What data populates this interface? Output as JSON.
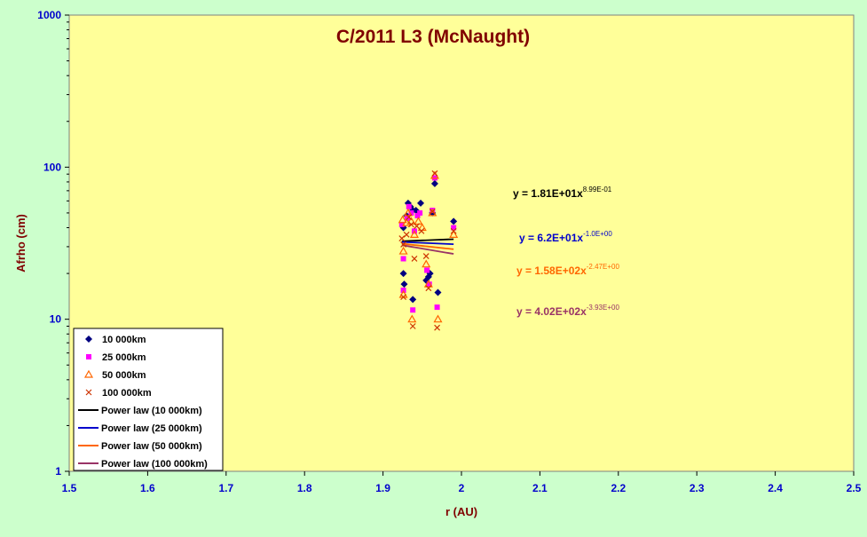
{
  "chart_data": {
    "type": "scatter",
    "title": "C/2011 L3 (McNaught)",
    "xlabel": "r (AU)",
    "ylabel": "Afrho (cm)",
    "xlim": [
      1.5,
      2.5
    ],
    "ylim": [
      1,
      1000
    ],
    "y_scale": "log",
    "x_ticks": [
      "1.5",
      "1.6",
      "1.7",
      "1.8",
      "1.9",
      "2",
      "2.1",
      "2.2",
      "2.3",
      "2.4",
      "2.5"
    ],
    "y_ticks": [
      "1",
      "10",
      "100",
      "1000"
    ],
    "grid": false,
    "legend_position": "bottom-left",
    "colors": {
      "plot_bg": "#ffff99",
      "page_bg": "#ccffcc",
      "title": "#800000",
      "axis_label": "#800000",
      "tick_label": "#0000cc"
    },
    "series": [
      {
        "name": "10 000km",
        "marker": "diamond",
        "color": "#000080",
        "points": [
          [
            1.926,
            40
          ],
          [
            1.926,
            20
          ],
          [
            1.927,
            17
          ],
          [
            1.93,
            48
          ],
          [
            1.932,
            58
          ],
          [
            1.935,
            55
          ],
          [
            1.938,
            52
          ],
          [
            1.938,
            13.5
          ],
          [
            1.942,
            52
          ],
          [
            1.945,
            50
          ],
          [
            1.948,
            58
          ],
          [
            1.955,
            18
          ],
          [
            1.958,
            19
          ],
          [
            1.96,
            20
          ],
          [
            1.963,
            50
          ],
          [
            1.966,
            78
          ],
          [
            1.97,
            15
          ],
          [
            1.99,
            44
          ]
        ]
      },
      {
        "name": "25 000km",
        "marker": "square",
        "color": "#ff00ff",
        "points": [
          [
            1.924,
            42
          ],
          [
            1.926,
            25
          ],
          [
            1.926,
            15.5
          ],
          [
            1.931,
            46
          ],
          [
            1.933,
            55
          ],
          [
            1.936,
            50
          ],
          [
            1.938,
            11.5
          ],
          [
            1.94,
            38
          ],
          [
            1.944,
            48
          ],
          [
            1.947,
            50
          ],
          [
            1.956,
            21
          ],
          [
            1.959,
            17
          ],
          [
            1.963,
            52
          ],
          [
            1.966,
            85
          ],
          [
            1.969,
            12
          ],
          [
            1.99,
            40
          ]
        ]
      },
      {
        "name": "50 000km",
        "marker": "triangle",
        "color": "#ff6600",
        "points": [
          [
            1.925,
            45
          ],
          [
            1.926,
            28
          ],
          [
            1.926,
            14.5
          ],
          [
            1.93,
            43
          ],
          [
            1.932,
            50
          ],
          [
            1.936,
            44
          ],
          [
            1.937,
            10
          ],
          [
            1.94,
            36
          ],
          [
            1.945,
            44
          ],
          [
            1.95,
            40
          ],
          [
            1.955,
            23
          ],
          [
            1.958,
            17
          ],
          [
            1.963,
            50
          ],
          [
            1.966,
            88
          ],
          [
            1.97,
            10
          ],
          [
            1.99,
            36
          ]
        ]
      },
      {
        "name": "100 000km",
        "marker": "cross",
        "color": "#cc3300",
        "points": [
          [
            1.924,
            34
          ],
          [
            1.926,
            31
          ],
          [
            1.926,
            14
          ],
          [
            1.93,
            36
          ],
          [
            1.933,
            47
          ],
          [
            1.936,
            42
          ],
          [
            1.938,
            9
          ],
          [
            1.94,
            25
          ],
          [
            1.943,
            41
          ],
          [
            1.949,
            38
          ],
          [
            1.955,
            26
          ],
          [
            1.958,
            16
          ],
          [
            1.963,
            51
          ],
          [
            1.966,
            91
          ],
          [
            1.969,
            8.8
          ],
          [
            1.99,
            38
          ]
        ]
      }
    ],
    "fits": [
      {
        "name": "Power law (10 000km)",
        "color": "#000000",
        "a": 18.1,
        "b": 0.899,
        "x_range": [
          1.924,
          1.99
        ],
        "equation": "y = 1.81E+01x",
        "exponent": "8.99E-01"
      },
      {
        "name": "Power law (25 000km)",
        "color": "#0000cc",
        "a": 62.0,
        "b": -1.0,
        "x_range": [
          1.924,
          1.99
        ],
        "equation": "y = 6.2E+01x",
        "exponent": "-1.0E+00"
      },
      {
        "name": "Power law (50 000km)",
        "color": "#ff6600",
        "a": 158,
        "b": -2.47,
        "x_range": [
          1.924,
          1.99
        ],
        "equation": "y = 1.58E+02x",
        "exponent": "-2.47E+00"
      },
      {
        "name": "Power law (100 000km)",
        "color": "#993366",
        "a": 402,
        "b": -3.93,
        "x_range": [
          1.924,
          1.99
        ],
        "equation": "y = 4.02E+02x",
        "exponent": "-3.93E+00"
      }
    ]
  }
}
